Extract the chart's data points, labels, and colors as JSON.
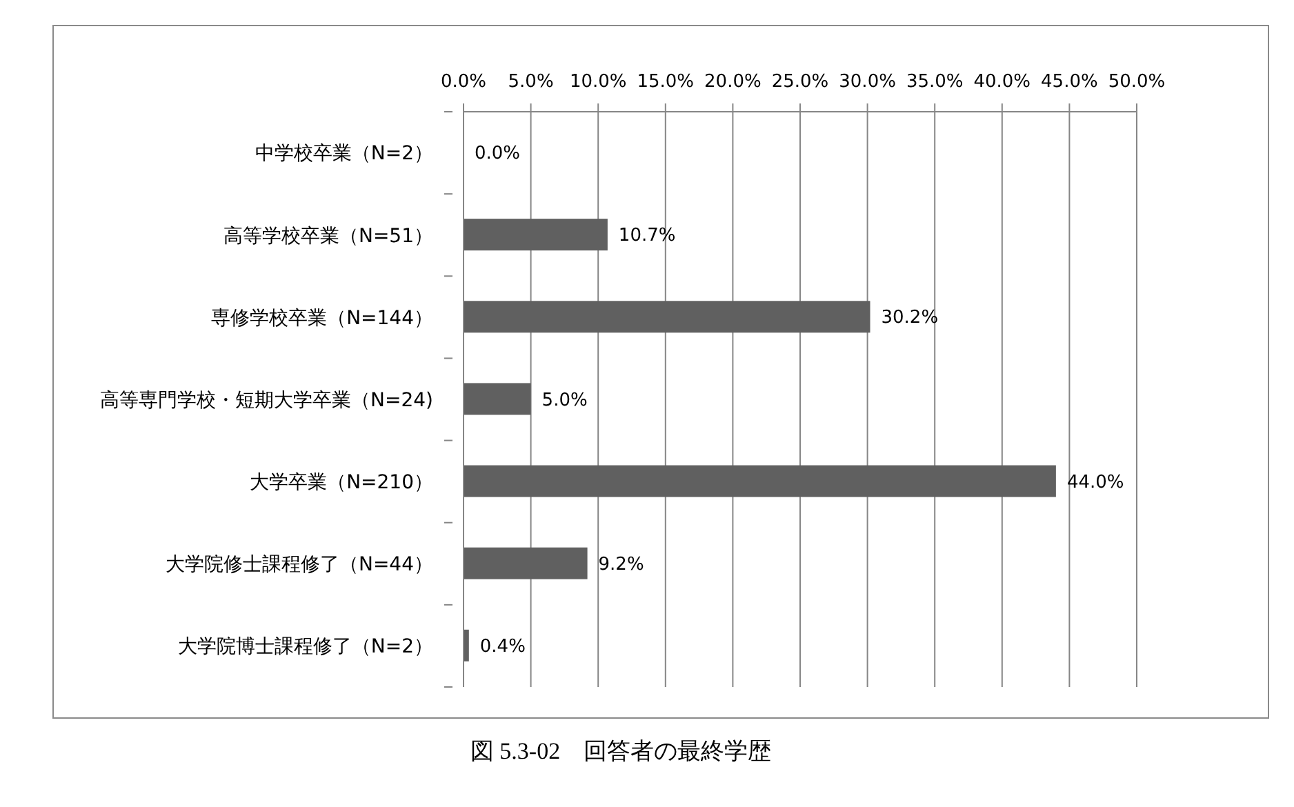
{
  "chart_data": {
    "type": "bar",
    "orientation": "horizontal",
    "title": "図 5.3-02　回答者の最終学歴",
    "categories": [
      "中学校卒業（N=2）",
      "高等学校卒業（N=51）",
      "専修学校卒業（N=144）",
      "高等専門学校・短期大学卒業（N=24)",
      "大学卒業（N=210）",
      "大学院修士課程修了（N=44）",
      "大学院博士課程修了（N=2）"
    ],
    "values": [
      0.0,
      10.7,
      30.2,
      5.0,
      44.0,
      9.2,
      0.4
    ],
    "value_labels": [
      "0.0%",
      "10.7%",
      "30.2%",
      "5.0%",
      "44.0%",
      "9.2%",
      "0.4%"
    ],
    "color": "#606060",
    "xlim": [
      0,
      50
    ],
    "xticks": [
      {
        "value": 0,
        "label": "0.0%"
      },
      {
        "value": 5,
        "label": "5.0%"
      },
      {
        "value": 10,
        "label": "10.0%"
      },
      {
        "value": 15,
        "label": "15.0%"
      },
      {
        "value": 20,
        "label": "20.0%"
      },
      {
        "value": 25,
        "label": "25.0%"
      },
      {
        "value": 30,
        "label": "30.0%"
      },
      {
        "value": 35,
        "label": "35.0%"
      },
      {
        "value": 40,
        "label": "40.0%"
      },
      {
        "value": 45,
        "label": "45.0%"
      },
      {
        "value": 50,
        "label": "50.0%"
      }
    ],
    "grid": "x"
  }
}
